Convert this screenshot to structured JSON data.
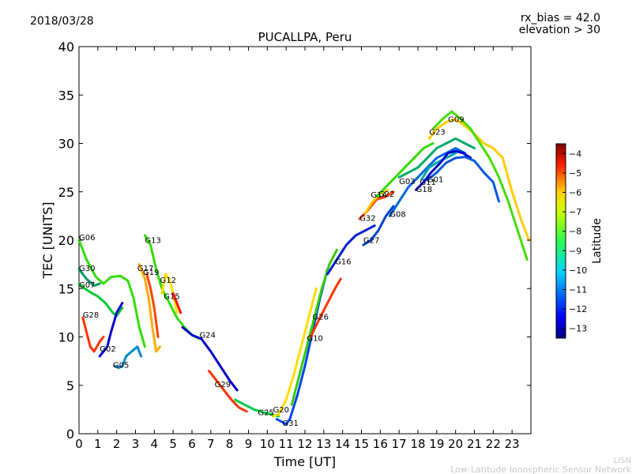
{
  "header": {
    "date": "2018/03/28",
    "rx_bias": "rx_bias = 42.0",
    "elevation": "elevation > 30"
  },
  "footer": {
    "org_short": "LISN",
    "org_long": "Low-Latitude Ionospheric Sensor Network"
  },
  "chart_data": {
    "type": "scatter",
    "title": "PUCALLPA, Peru",
    "xlabel": "Time [UT]",
    "ylabel": "TEC [UNITS]",
    "xlim": [
      0,
      24
    ],
    "ylim": [
      0,
      40
    ],
    "x_ticks": [
      0,
      1,
      2,
      3,
      4,
      5,
      6,
      7,
      8,
      9,
      10,
      11,
      12,
      13,
      14,
      15,
      16,
      17,
      18,
      19,
      20,
      21,
      22,
      23
    ],
    "y_ticks": [
      0,
      5,
      10,
      15,
      20,
      25,
      30,
      35,
      40
    ],
    "grid": false,
    "colorbar": {
      "label": "Latitude",
      "range": [
        -13.5,
        -3.5
      ],
      "ticks": [
        -13,
        -12,
        -11,
        -10,
        -9,
        -8,
        -7,
        -6,
        -5,
        -4
      ],
      "colormap": "jet"
    },
    "series": [
      {
        "name": "G06",
        "color": "#33dd00",
        "points": [
          [
            0,
            20
          ],
          [
            0.4,
            18
          ],
          [
            0.9,
            16.2
          ],
          [
            1.3,
            15.5
          ],
          [
            1.7,
            16.2
          ],
          [
            2.2,
            16.3
          ],
          [
            2.6,
            15.8
          ],
          [
            2.9,
            14
          ],
          [
            3.2,
            11
          ],
          [
            3.5,
            9
          ]
        ]
      },
      {
        "name": "G30",
        "color": "#009966",
        "points": [
          [
            0,
            17
          ],
          [
            0.4,
            16
          ],
          [
            0.8,
            15.3
          ],
          [
            1.1,
            15.5
          ]
        ]
      },
      {
        "name": "G07",
        "color": "#00cc33",
        "points": [
          [
            0,
            15.5
          ],
          [
            0.3,
            15
          ],
          [
            0.7,
            14.5
          ],
          [
            1.0,
            14.2
          ],
          [
            1.4,
            13.5
          ],
          [
            1.8,
            12.5
          ],
          [
            2.0,
            12.2
          ],
          [
            2.3,
            13
          ]
        ]
      },
      {
        "name": "G28",
        "color": "#ff3300",
        "points": [
          [
            0.2,
            12
          ],
          [
            0.4,
            10.5
          ],
          [
            0.6,
            9
          ],
          [
            0.8,
            8.5
          ],
          [
            1.1,
            9.5
          ],
          [
            1.3,
            10
          ]
        ]
      },
      {
        "name": "G02",
        "color": "#0000cc",
        "points": [
          [
            1.1,
            8
          ],
          [
            1.3,
            8.5
          ],
          [
            1.5,
            9
          ],
          [
            1.7,
            10.5
          ],
          [
            2.0,
            12.5
          ],
          [
            2.3,
            13.5
          ]
        ]
      },
      {
        "name": "G05",
        "color": "#0088cc",
        "points": [
          [
            1.9,
            7
          ],
          [
            2.1,
            6.8
          ],
          [
            2.3,
            7
          ],
          [
            2.5,
            8
          ],
          [
            2.8,
            8.5
          ],
          [
            3.1,
            9
          ],
          [
            3.3,
            8
          ]
        ]
      },
      {
        "name": "G17",
        "color": "#ffaa00",
        "points": [
          [
            3.2,
            17.5
          ],
          [
            3.5,
            16
          ],
          [
            3.7,
            14
          ],
          [
            3.9,
            11
          ],
          [
            4.1,
            8.5
          ],
          [
            4.3,
            9
          ]
        ]
      },
      {
        "name": "G19",
        "color": "#ff4400",
        "points": [
          [
            3.6,
            16.5
          ],
          [
            3.8,
            15
          ],
          [
            4.0,
            13
          ],
          [
            4.2,
            10
          ]
        ]
      },
      {
        "name": "G13",
        "color": "#33dd00",
        "points": [
          [
            3.5,
            20.5
          ],
          [
            3.8,
            19.5
          ],
          [
            4.1,
            17
          ],
          [
            4.4,
            15
          ],
          [
            4.8,
            13.5
          ],
          [
            5.2,
            12
          ],
          [
            5.6,
            11
          ],
          [
            6.0,
            10.2
          ],
          [
            6.4,
            9.8
          ]
        ]
      },
      {
        "name": "G12",
        "color": "#ffdd00",
        "points": [
          [
            4.4,
            14.5
          ],
          [
            4.6,
            16.5
          ],
          [
            4.8,
            16
          ],
          [
            5.0,
            14.5
          ],
          [
            5.2,
            12.5
          ]
        ]
      },
      {
        "name": "G15",
        "color": "#ff1100",
        "points": [
          [
            5.0,
            14.5
          ],
          [
            5.2,
            13.5
          ],
          [
            5.4,
            12.5
          ]
        ]
      },
      {
        "name": "G24",
        "color": "#0000cc",
        "points": [
          [
            5.5,
            11
          ],
          [
            6.0,
            10.2
          ],
          [
            6.5,
            9.8
          ],
          [
            7.0,
            8.5
          ],
          [
            7.5,
            7
          ],
          [
            8.0,
            5.5
          ],
          [
            8.4,
            4.5
          ]
        ]
      },
      {
        "name": "G29",
        "color": "#ff3300",
        "points": [
          [
            6.9,
            6.5
          ],
          [
            7.3,
            5.5
          ],
          [
            7.7,
            4.5
          ],
          [
            8.1,
            3.5
          ],
          [
            8.5,
            2.7
          ],
          [
            8.9,
            2.3
          ]
        ]
      },
      {
        "name": "G25",
        "color": "#00cc44",
        "points": [
          [
            8.3,
            3.5
          ],
          [
            8.8,
            3
          ],
          [
            9.3,
            2.5
          ],
          [
            9.8,
            2.2
          ],
          [
            10.2,
            2
          ],
          [
            10.6,
            1.8
          ]
        ]
      },
      {
        "name": "G20",
        "color": "#ffdd00",
        "points": [
          [
            10.3,
            1.8
          ],
          [
            10.6,
            2
          ],
          [
            11.0,
            3.5
          ],
          [
            11.4,
            6
          ],
          [
            11.8,
            9
          ],
          [
            12.2,
            12
          ],
          [
            12.6,
            15
          ]
        ]
      },
      {
        "name": "G31",
        "color": "#0044ee",
        "points": [
          [
            10.5,
            1.5
          ],
          [
            10.8,
            1.2
          ],
          [
            11.0,
            1.0
          ],
          [
            11.2,
            1.5
          ],
          [
            11.6,
            4
          ],
          [
            12.0,
            7
          ],
          [
            12.4,
            10.5
          ],
          [
            12.8,
            14
          ],
          [
            13.2,
            17
          ]
        ]
      },
      {
        "name": "G10",
        "color": "#33cc00",
        "points": [
          [
            11.3,
            3
          ],
          [
            11.7,
            6
          ],
          [
            12.1,
            9
          ],
          [
            12.5,
            12
          ],
          [
            12.9,
            15
          ],
          [
            13.3,
            17.5
          ],
          [
            13.7,
            19
          ]
        ]
      },
      {
        "name": "G26",
        "color": "#ff3300",
        "points": [
          [
            12.3,
            10
          ],
          [
            12.8,
            12
          ],
          [
            13.2,
            13.5
          ],
          [
            13.6,
            15
          ],
          [
            13.9,
            16
          ]
        ]
      },
      {
        "name": "G16",
        "color": "#0022cc",
        "points": [
          [
            13.2,
            16.5
          ],
          [
            13.7,
            18
          ],
          [
            14.2,
            19.5
          ],
          [
            14.7,
            20.5
          ],
          [
            15.2,
            21
          ],
          [
            15.7,
            21.5
          ]
        ]
      },
      {
        "name": "G32",
        "color": "#ff4400",
        "points": [
          [
            14.9,
            22.2
          ],
          [
            15.3,
            23
          ],
          [
            15.8,
            24.2
          ],
          [
            16.3,
            24.5
          ],
          [
            16.7,
            25
          ]
        ]
      },
      {
        "name": "G27",
        "color": "#0044cc",
        "points": [
          [
            15.1,
            19.5
          ],
          [
            15.5,
            20
          ],
          [
            15.9,
            21
          ],
          [
            16.3,
            22.5
          ],
          [
            16.7,
            23.5
          ]
        ]
      },
      {
        "name": "G14",
        "color": "#ffcc00",
        "points": [
          [
            15.2,
            22.8
          ],
          [
            15.6,
            24
          ],
          [
            16.0,
            24.8
          ],
          [
            16.4,
            25.2
          ]
        ]
      },
      {
        "name": "G22",
        "color": "#33dd00",
        "points": [
          [
            15.8,
            24.5
          ],
          [
            16.3,
            25.5
          ],
          [
            16.8,
            26.5
          ],
          [
            17.3,
            27.5
          ],
          [
            17.8,
            28.5
          ],
          [
            18.3,
            29.5
          ],
          [
            18.8,
            30
          ]
        ]
      },
      {
        "name": "G08",
        "color": "#0066dd",
        "points": [
          [
            16.5,
            22.5
          ],
          [
            17.0,
            24
          ],
          [
            17.5,
            25.5
          ],
          [
            18.0,
            26.5
          ],
          [
            18.5,
            27.5
          ],
          [
            19.0,
            28.5
          ],
          [
            19.5,
            29
          ],
          [
            20.0,
            29.5
          ],
          [
            20.5,
            29
          ]
        ]
      },
      {
        "name": "G03",
        "color": "#00aa66",
        "points": [
          [
            17.0,
            26.5
          ],
          [
            17.5,
            27
          ],
          [
            18.0,
            27.5
          ],
          [
            18.5,
            28.5
          ],
          [
            19.0,
            29.5
          ],
          [
            19.5,
            30
          ],
          [
            20.0,
            30.5
          ],
          [
            20.5,
            30
          ],
          [
            21.0,
            29.5
          ]
        ]
      },
      {
        "name": "G11",
        "color": "#00aaaa",
        "points": [
          [
            18.2,
            26.3
          ],
          [
            18.6,
            27.5
          ],
          [
            19.0,
            28
          ],
          [
            19.5,
            28.5
          ],
          [
            20.0,
            29
          ]
        ]
      },
      {
        "name": "G18",
        "color": "#0000cc",
        "points": [
          [
            17.9,
            25.2
          ],
          [
            18.3,
            26
          ],
          [
            18.7,
            27
          ],
          [
            19.2,
            28
          ],
          [
            19.6,
            29
          ],
          [
            20.0,
            29.2
          ],
          [
            20.4,
            29
          ],
          [
            20.8,
            28.5
          ]
        ]
      },
      {
        "name": "G01",
        "color": "#0055dd",
        "points": [
          [
            18.5,
            26.2
          ],
          [
            19.0,
            27
          ],
          [
            19.5,
            28
          ],
          [
            20.0,
            28.5
          ],
          [
            20.5,
            28.6
          ],
          [
            21.0,
            28.2
          ],
          [
            21.5,
            27
          ],
          [
            22.0,
            26
          ],
          [
            22.3,
            24
          ]
        ]
      },
      {
        "name": "G23",
        "color": "#ffcc00",
        "points": [
          [
            18.6,
            30.5
          ],
          [
            19.0,
            31.5
          ],
          [
            19.5,
            32.2
          ],
          [
            20.0,
            32.5
          ],
          [
            20.5,
            31.8
          ],
          [
            21.0,
            31
          ],
          [
            21.5,
            30
          ],
          [
            22.0,
            29.5
          ],
          [
            22.5,
            28.5
          ],
          [
            23.0,
            25
          ],
          [
            23.5,
            22
          ],
          [
            23.9,
            20
          ]
        ]
      },
      {
        "name": "G09",
        "color": "#44dd00",
        "points": [
          [
            18.8,
            31.5
          ],
          [
            19.3,
            32.5
          ],
          [
            19.8,
            33.3
          ],
          [
            20.3,
            32.5
          ],
          [
            20.8,
            31.5
          ],
          [
            21.3,
            30
          ],
          [
            21.8,
            28.5
          ],
          [
            22.3,
            26.5
          ],
          [
            22.8,
            24
          ],
          [
            23.3,
            21
          ],
          [
            23.8,
            18
          ]
        ]
      }
    ],
    "label_positions": [
      {
        "name": "G06",
        "x": 0.0,
        "y": 20.0
      },
      {
        "name": "G30",
        "x": 0.0,
        "y": 16.8
      },
      {
        "name": "G07",
        "x": 0.0,
        "y": 15.1
      },
      {
        "name": "G28",
        "x": 0.2,
        "y": 12.0
      },
      {
        "name": "G02",
        "x": 1.1,
        "y": 8.5
      },
      {
        "name": "G05",
        "x": 1.8,
        "y": 6.8
      },
      {
        "name": "G17",
        "x": 3.1,
        "y": 16.8
      },
      {
        "name": "G19",
        "x": 3.4,
        "y": 16.4
      },
      {
        "name": "G13",
        "x": 3.5,
        "y": 19.7
      },
      {
        "name": "G12",
        "x": 4.3,
        "y": 15.6
      },
      {
        "name": "G15",
        "x": 4.5,
        "y": 13.9
      },
      {
        "name": "G24",
        "x": 6.4,
        "y": 9.9
      },
      {
        "name": "G29",
        "x": 7.2,
        "y": 4.8
      },
      {
        "name": "G25",
        "x": 9.5,
        "y": 1.9
      },
      {
        "name": "G20",
        "x": 10.3,
        "y": 2.2
      },
      {
        "name": "G31",
        "x": 10.8,
        "y": 0.8
      },
      {
        "name": "G10",
        "x": 12.1,
        "y": 9.6
      },
      {
        "name": "G26",
        "x": 12.4,
        "y": 11.8
      },
      {
        "name": "G16",
        "x": 13.6,
        "y": 17.5
      },
      {
        "name": "G32",
        "x": 14.9,
        "y": 22.0
      },
      {
        "name": "G27",
        "x": 15.1,
        "y": 19.7
      },
      {
        "name": "G14",
        "x": 15.5,
        "y": 24.4
      },
      {
        "name": "G22",
        "x": 15.9,
        "y": 24.5
      },
      {
        "name": "G08",
        "x": 16.5,
        "y": 22.4
      },
      {
        "name": "G03",
        "x": 17.0,
        "y": 25.8
      },
      {
        "name": "G11",
        "x": 18.1,
        "y": 25.7
      },
      {
        "name": "G18",
        "x": 17.9,
        "y": 25.0
      },
      {
        "name": "G01",
        "x": 18.5,
        "y": 26.0
      },
      {
        "name": "G23",
        "x": 18.6,
        "y": 30.9
      },
      {
        "name": "G09",
        "x": 19.6,
        "y": 32.2
      }
    ]
  }
}
